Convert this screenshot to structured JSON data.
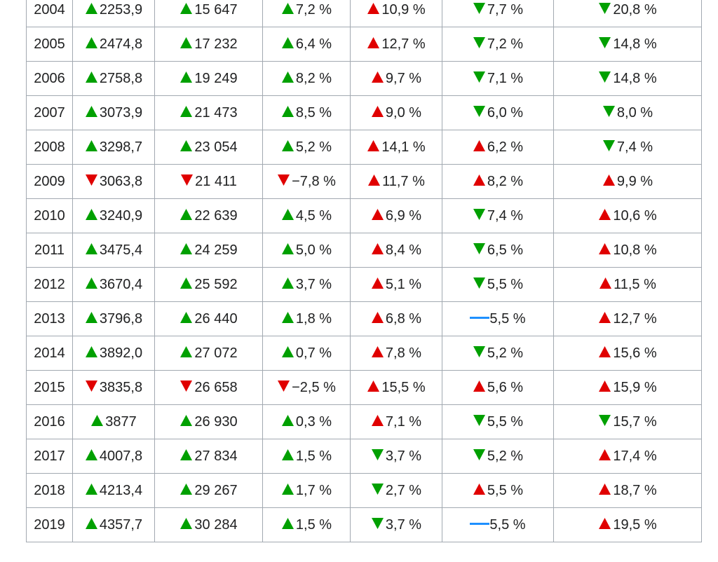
{
  "table": {
    "rows": [
      [
        "2004",
        "2253,9",
        "15 647",
        "7,2 %",
        "10,9 %",
        "7,7 %",
        "20,8 %"
      ],
      [
        "2005",
        "2474,8",
        "17 232",
        "6,4 %",
        "12,7 %",
        "7,2 %",
        "14,8 %"
      ],
      [
        "2006",
        "2758,8",
        "19 249",
        "8,2 %",
        "9,7 %",
        "7,1 %",
        "14,8 %"
      ],
      [
        "2007",
        "3073,9",
        "21 473",
        "8,5 %",
        "9,0 %",
        "6,0 %",
        "8,0 %"
      ],
      [
        "2008",
        "3298,7",
        "23 054",
        "5,2 %",
        "14,1 %",
        "6,2 %",
        "7,4 %"
      ],
      [
        "2009",
        "3063,8",
        "21 411",
        "−7,8 %",
        "11,7 %",
        "8,2 %",
        "9,9 %"
      ],
      [
        "2010",
        "3240,9",
        "22 639",
        "4,5 %",
        "6,9 %",
        "7,4 %",
        "10,6 %"
      ],
      [
        "2011",
        "3475,4",
        "24 259",
        "5,0 %",
        "8,4 %",
        "6,5 %",
        "10,8 %"
      ],
      [
        "2012",
        "3670,4",
        "25 592",
        "3,7 %",
        "5,1 %",
        "5,5 %",
        "11,5 %"
      ],
      [
        "2013",
        "3796,8",
        "26 440",
        "1,8 %",
        "6,8 %",
        "5,5 %",
        "12,7 %"
      ],
      [
        "2014",
        "3892,0",
        "27 072",
        "0,7 %",
        "7,8 %",
        "5,2 %",
        "15,6 %"
      ],
      [
        "2015",
        "3835,8",
        "26 658",
        "−2,5 %",
        "15,5 %",
        "5,6 %",
        "15,9 %"
      ],
      [
        "2016",
        "3877",
        "26 930",
        "0,3 %",
        "7,1 %",
        "5,5 %",
        "15,7 %"
      ],
      [
        "2017",
        "4007,8",
        "27 834",
        "1,5 %",
        "3,7 %",
        "5,2 %",
        "17,4 %"
      ],
      [
        "2018",
        "4213,4",
        "29 267",
        "1,7 %",
        "2,7 %",
        "5,5 %",
        "18,7 %"
      ],
      [
        "2019",
        "4357,7",
        "30 284",
        "1,5 %",
        "3,7 %",
        "5,5 %",
        "19,5 %"
      ]
    ]
  }
}
